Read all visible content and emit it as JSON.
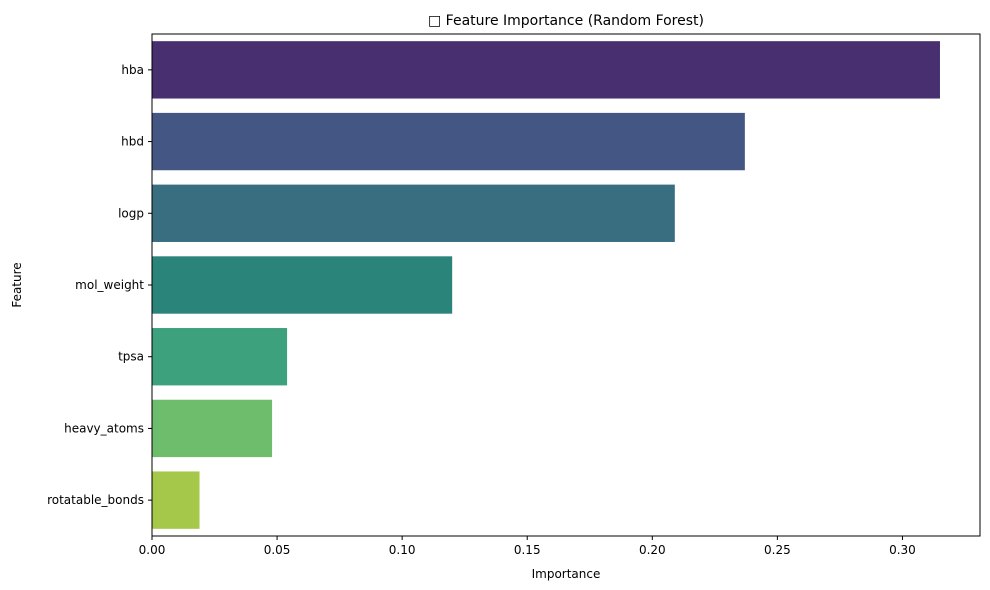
{
  "chart_data": {
    "type": "bar",
    "orientation": "horizontal",
    "title": "□ Feature Importance (Random Forest)",
    "xlabel": "Importance",
    "ylabel": "Feature",
    "categories": [
      "hba",
      "hbd",
      "logp",
      "mol_weight",
      "tpsa",
      "heavy_atoms",
      "rotatable_bonds"
    ],
    "values": [
      0.315,
      0.237,
      0.209,
      0.12,
      0.054,
      0.048,
      0.019
    ],
    "colors": [
      "#482f70",
      "#445784",
      "#386e80",
      "#2b8479",
      "#3ca17c",
      "#6dbd6c",
      "#a5c74a"
    ],
    "xlim": [
      0,
      0.331
    ],
    "xticks": [
      0.0,
      0.05,
      0.1,
      0.15,
      0.2,
      0.25,
      0.3
    ],
    "xtick_labels": [
      "0.00",
      "0.05",
      "0.10",
      "0.15",
      "0.20",
      "0.25",
      "0.30"
    ],
    "grid": false,
    "palette": "viridis"
  }
}
